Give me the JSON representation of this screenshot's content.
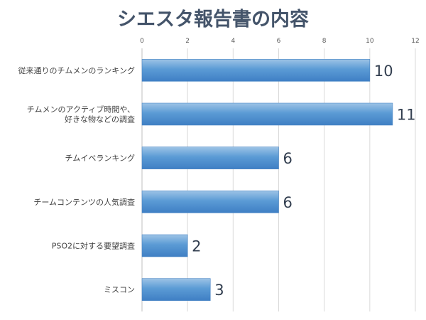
{
  "chart_data": {
    "type": "bar",
    "orientation": "horizontal",
    "title": "シエスタ報告書の内容",
    "categories": [
      "従来通りのチムメンのランキング",
      "チムメンのアクティブ時間や、\n好きな物などの調査",
      "チムイベランキング",
      "チームコンテンツの人気調査",
      "PSO2に対する要望調査",
      "ミスコン"
    ],
    "values": [
      10,
      11,
      6,
      6,
      2,
      3
    ],
    "data_labels": [
      "10",
      "11",
      "6",
      "6",
      "2",
      "3"
    ],
    "xlim": [
      0,
      12
    ],
    "x_ticks": [
      0,
      2,
      4,
      6,
      8,
      10,
      12
    ],
    "x_tick_labels": [
      "0",
      "2",
      "4",
      "6",
      "8",
      "10",
      "12"
    ],
    "x_axis_position": "top",
    "grid": true,
    "legend": "none",
    "bar_color": "#5b9bd5",
    "bar_gradient_light": "#9dc3e6",
    "bar_gradient_dark": "#3f7fc4",
    "title_color": "#44546a",
    "gridline_color": "#d9d9d9"
  }
}
